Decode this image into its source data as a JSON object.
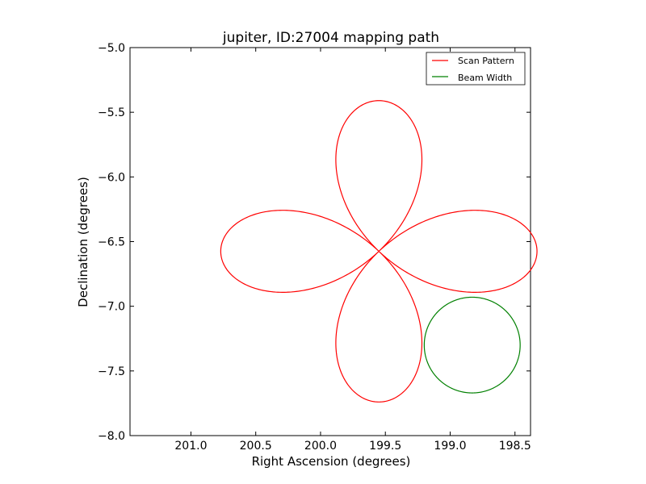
{
  "chart_data": {
    "type": "line",
    "title": "jupiter, ID:27004 mapping path",
    "xlabel": "Right Ascension (degrees)",
    "ylabel": "Declination (degrees)",
    "xlim": [
      201.47,
      198.38
    ],
    "ylim": [
      -8.0,
      -5.0
    ],
    "x_inverted": true,
    "xticks": [
      201.0,
      200.5,
      200.0,
      199.5,
      199.0,
      198.5
    ],
    "xtick_labels": [
      "201.0",
      "200.5",
      "200.0",
      "199.5",
      "199.0",
      "198.5"
    ],
    "yticks": [
      -5.0,
      -5.5,
      -6.0,
      -6.5,
      -7.0,
      -7.5,
      -8.0
    ],
    "ytick_labels": [
      "−5.0",
      "−5.5",
      "−6.0",
      "−6.5",
      "−7.0",
      "−7.5",
      "−8.0"
    ],
    "grid": false,
    "legend_position": "top-right",
    "series": [
      {
        "name": "Scan Pattern",
        "color": "#ff0000",
        "shape": "four-petal rose",
        "center": [
          199.55,
          -6.575
        ],
        "petal_length_ra": 1.22,
        "petal_length_dec": 1.165
      },
      {
        "name": "Beam Width",
        "color": "#008000",
        "shape": "circle",
        "center": [
          198.83,
          -7.3
        ],
        "radius_ra": 0.37,
        "radius_dec": 0.37
      }
    ]
  }
}
